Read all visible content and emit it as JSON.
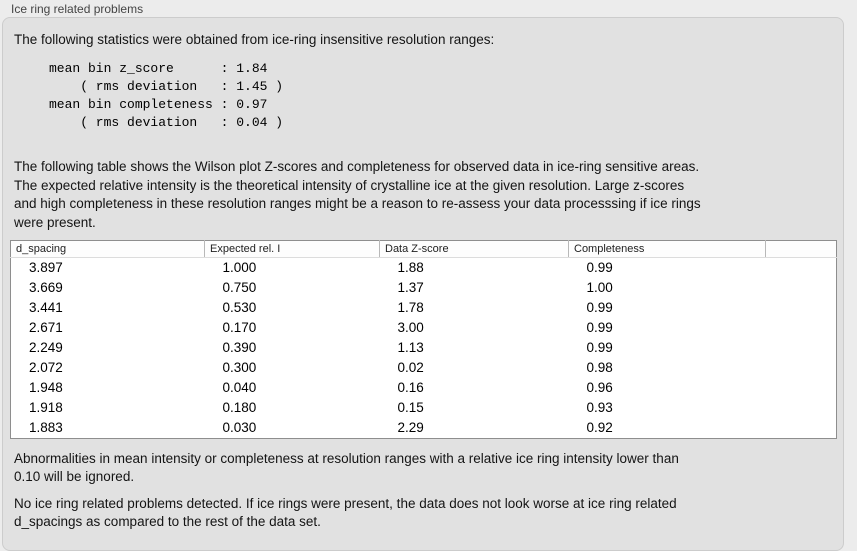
{
  "header": {
    "title": "Ice ring related problems"
  },
  "intro": {
    "text": "The following statistics were obtained from ice-ring insensitive resolution ranges:"
  },
  "stats_block": {
    "lines": [
      "mean bin z_score      : 1.84",
      "    ( rms deviation   : 1.45 )",
      "mean bin completeness : 0.97",
      "    ( rms deviation   : 0.04 )"
    ]
  },
  "description": {
    "lines": [
      "The following table shows the Wilson plot Z-scores and completeness for observed data in ice-ring sensitive areas.",
      "The expected relative intensity is the theoretical intensity of crystalline ice at the given resolution. Large z-scores",
      "and high completeness in these resolution ranges might be a reason to re-assess your data processsing if ice rings",
      "were present."
    ]
  },
  "table": {
    "columns": [
      "d_spacing",
      "Expected rel. I",
      "Data Z-score",
      "Completeness"
    ],
    "rows": [
      [
        "3.897",
        "1.000",
        "1.88",
        "0.99"
      ],
      [
        "3.669",
        "0.750",
        "1.37",
        "1.00"
      ],
      [
        "3.441",
        "0.530",
        "1.78",
        "0.99"
      ],
      [
        "2.671",
        "0.170",
        "3.00",
        "0.99"
      ],
      [
        "2.249",
        "0.390",
        "1.13",
        "0.99"
      ],
      [
        "2.072",
        "0.300",
        "0.02",
        "0.98"
      ],
      [
        "1.948",
        "0.040",
        "0.16",
        "0.96"
      ],
      [
        "1.918",
        "0.180",
        "0.15",
        "0.93"
      ],
      [
        "1.883",
        "0.030",
        "2.29",
        "0.92"
      ]
    ]
  },
  "notes": [
    {
      "lines": [
        "Abnormalities in mean intensity or completeness at resolution ranges with a relative ice ring intensity lower than",
        "0.10 will be ignored."
      ]
    },
    {
      "lines": [
        "No ice ring related problems detected. If ice rings were present, the data does not look worse at ice ring related",
        "d_spacings as compared to the rest of the data set."
      ]
    }
  ],
  "colors": {
    "outer_background": "#ececec",
    "panel_background": "#e1e1e1",
    "table_background": "#ffffff",
    "table_border": "#8e8e8e"
  }
}
